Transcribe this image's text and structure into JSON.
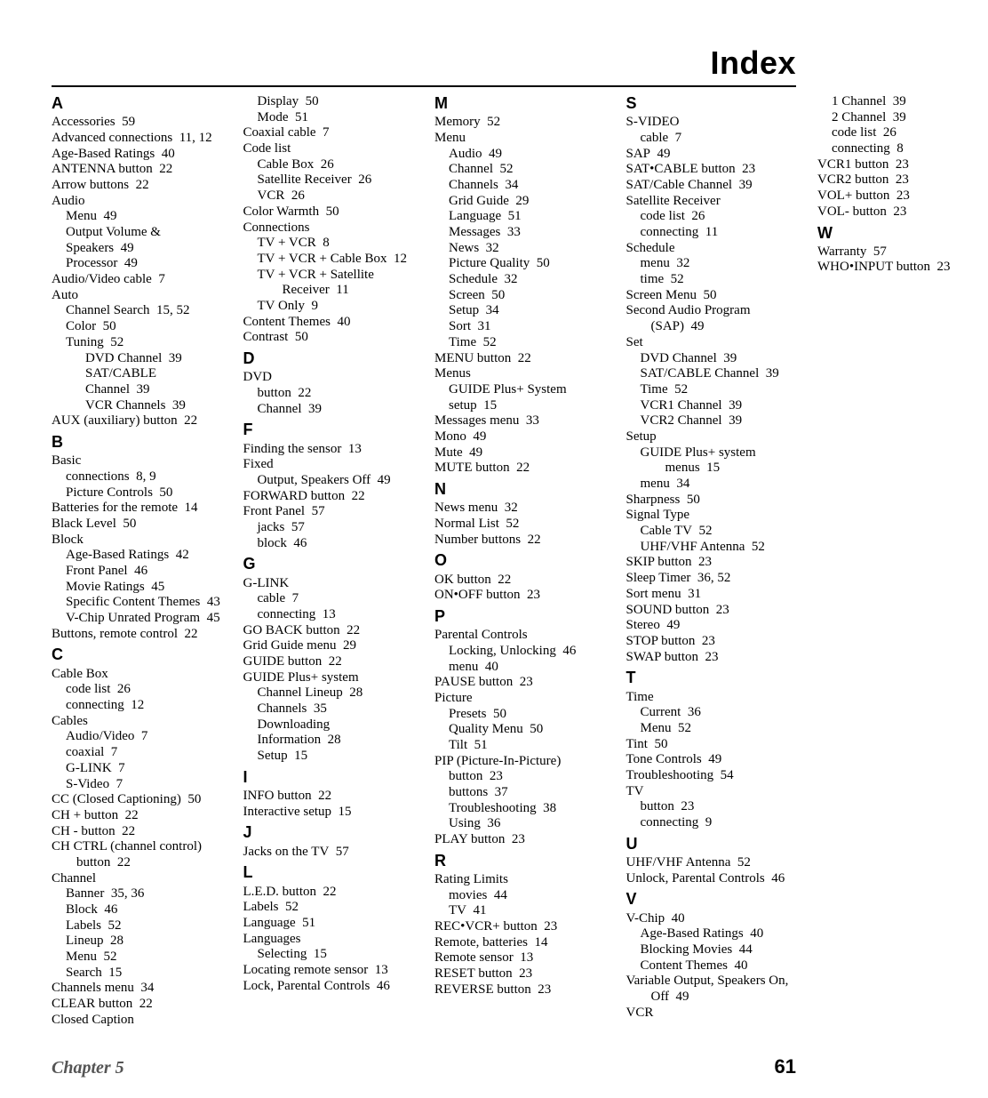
{
  "title": "Index",
  "footer": {
    "chapter": "Chapter 5",
    "page": "61"
  },
  "index": [
    {
      "letter": "A",
      "entries": [
        {
          "t": "Accessories",
          "p": "59"
        },
        {
          "t": "Advanced connections",
          "p": "11, 12"
        },
        {
          "t": "Age-Based Ratings",
          "p": "40"
        },
        {
          "t": "ANTENNA button",
          "p": "22"
        },
        {
          "t": "Arrow buttons",
          "p": "22"
        },
        {
          "t": "Audio",
          "sub": [
            {
              "t": "Menu",
              "p": "49"
            },
            {
              "t": "Output Volume & Speakers",
              "p": "49"
            },
            {
              "t": "Processor",
              "p": "49"
            }
          ]
        },
        {
          "t": "Audio/Video cable",
          "p": "7"
        },
        {
          "t": "Auto",
          "sub": [
            {
              "t": "Channel Search",
              "p": "15, 52"
            },
            {
              "t": "Color",
              "p": "50"
            },
            {
              "t": "Tuning",
              "p": "52",
              "sub": [
                {
                  "t": "DVD Channel",
                  "p": "39"
                },
                {
                  "t": "SAT/CABLE Channel",
                  "p": "39"
                },
                {
                  "t": "VCR Channels",
                  "p": "39"
                }
              ]
            }
          ]
        },
        {
          "t": "AUX (auxiliary) button",
          "p": "22"
        }
      ]
    },
    {
      "letter": "B",
      "entries": [
        {
          "t": "Basic",
          "sub": [
            {
              "t": "connections",
              "p": "8, 9"
            },
            {
              "t": "Picture Controls",
              "p": "50"
            }
          ]
        },
        {
          "t": "Batteries for the remote",
          "p": "14"
        },
        {
          "t": "Black Level",
          "p": "50"
        },
        {
          "t": "Block",
          "sub": [
            {
              "t": "Age-Based Ratings",
              "p": "42"
            },
            {
              "t": "Front Panel",
              "p": "46"
            },
            {
              "t": "Movie Ratings",
              "p": "45"
            },
            {
              "t": "Specific Content Themes",
              "p": "43"
            },
            {
              "t": "V-Chip Unrated Program",
              "p": "45"
            }
          ]
        },
        {
          "t": "Buttons, remote control",
          "p": "22"
        }
      ]
    },
    {
      "letter": "C",
      "entries": [
        {
          "t": "Cable Box",
          "sub": [
            {
              "t": "code list",
              "p": "26"
            },
            {
              "t": "connecting",
              "p": "12"
            }
          ]
        },
        {
          "t": "Cables",
          "sub": [
            {
              "t": "Audio/Video",
              "p": "7"
            },
            {
              "t": "coaxial",
              "p": "7"
            },
            {
              "t": "G-LINK",
              "p": "7"
            },
            {
              "t": "S-Video",
              "p": "7"
            }
          ]
        },
        {
          "t": "CC (Closed Captioning)",
          "p": "50"
        },
        {
          "t": "CH + button",
          "p": "22"
        },
        {
          "t": "CH - button",
          "p": "22"
        },
        {
          "t": "CH CTRL (channel control) button",
          "p": "22",
          "wrap": true
        },
        {
          "t": "Channel",
          "sub": [
            {
              "t": "Banner",
              "p": "35, 36"
            },
            {
              "t": "Block",
              "p": "46"
            },
            {
              "t": "Labels",
              "p": "52"
            },
            {
              "t": "Lineup",
              "p": "28"
            },
            {
              "t": "Menu",
              "p": "52"
            },
            {
              "t": "Search",
              "p": "15"
            }
          ]
        },
        {
          "t": "Channels menu",
          "p": "34"
        },
        {
          "t": "CLEAR button",
          "p": "22"
        },
        {
          "t": "Closed Caption",
          "sub": [
            {
              "t": "Display",
              "p": "50"
            },
            {
              "t": "Mode",
              "p": "51"
            }
          ]
        },
        {
          "t": "Coaxial cable",
          "p": "7"
        },
        {
          "t": "Code list",
          "sub": [
            {
              "t": "Cable Box",
              "p": "26"
            },
            {
              "t": "Satellite Receiver",
              "p": "26"
            },
            {
              "t": "VCR",
              "p": "26"
            }
          ]
        },
        {
          "t": "Color Warmth",
          "p": "50"
        },
        {
          "t": "Connections",
          "sub": [
            {
              "t": "TV + VCR",
              "p": "8"
            },
            {
              "t": "TV + VCR + Cable Box",
              "p": "12"
            },
            {
              "t": "TV + VCR + Satellite Receiver",
              "p": "11",
              "wrap": true
            },
            {
              "t": "TV Only",
              "p": "9"
            }
          ]
        },
        {
          "t": "Content Themes",
          "p": "40"
        },
        {
          "t": "Contrast",
          "p": "50"
        }
      ]
    },
    {
      "letter": "D",
      "entries": [
        {
          "t": "DVD",
          "sub": [
            {
              "t": "button",
              "p": "22"
            },
            {
              "t": "Channel",
              "p": "39"
            }
          ]
        }
      ]
    },
    {
      "letter": "F",
      "entries": [
        {
          "t": "Finding the sensor",
          "p": "13"
        },
        {
          "t": "Fixed",
          "sub": [
            {
              "t": "Output, Speakers Off",
              "p": "49"
            }
          ]
        },
        {
          "t": "FORWARD button",
          "p": "22"
        },
        {
          "t": "Front Panel",
          "p": "57",
          "sub": [
            {
              "t": "jacks",
              "p": "57"
            },
            {
              "t": "block",
              "p": "46"
            }
          ]
        }
      ]
    },
    {
      "letter": "G",
      "entries": [
        {
          "t": "G-LINK",
          "sub": [
            {
              "t": "cable",
              "p": "7"
            },
            {
              "t": "connecting",
              "p": "13"
            }
          ]
        },
        {
          "t": "GO BACK button",
          "p": "22"
        },
        {
          "t": "Grid Guide menu",
          "p": "29"
        },
        {
          "t": "GUIDE button",
          "p": "22"
        },
        {
          "t": "GUIDE Plus+ system",
          "sub": [
            {
              "t": "Channel Lineup",
              "p": "28"
            },
            {
              "t": "Channels",
              "p": "35"
            },
            {
              "t": "Downloading Information",
              "p": "28"
            },
            {
              "t": "Setup",
              "p": "15"
            }
          ]
        }
      ]
    },
    {
      "letter": "I",
      "entries": [
        {
          "t": "INFO button",
          "p": "22"
        },
        {
          "t": "Interactive setup",
          "p": "15"
        }
      ]
    },
    {
      "letter": "J",
      "entries": [
        {
          "t": "Jacks on the TV",
          "p": "57"
        }
      ]
    },
    {
      "letter": "L",
      "entries": [
        {
          "t": "L.E.D. button",
          "p": "22"
        },
        {
          "t": "Labels",
          "p": "52"
        },
        {
          "t": "Language",
          "p": "51"
        },
        {
          "t": "Languages",
          "sub": [
            {
              "t": "Selecting",
              "p": "15"
            }
          ]
        },
        {
          "t": "Locating remote sensor",
          "p": "13"
        },
        {
          "t": "Lock, Parental Controls",
          "p": "46"
        }
      ]
    },
    {
      "letter": "M",
      "entries": [
        {
          "t": "Memory",
          "p": "52"
        },
        {
          "t": "Menu",
          "sub": [
            {
              "t": "Audio",
              "p": "49"
            },
            {
              "t": "Channel",
              "p": "52"
            },
            {
              "t": "Channels",
              "p": "34"
            },
            {
              "t": "Grid Guide",
              "p": "29"
            },
            {
              "t": "Language",
              "p": "51"
            },
            {
              "t": "Messages",
              "p": "33"
            },
            {
              "t": "News",
              "p": "32"
            },
            {
              "t": "Picture Quality",
              "p": "50"
            },
            {
              "t": "Schedule",
              "p": "32"
            },
            {
              "t": "Screen",
              "p": "50"
            },
            {
              "t": "Setup",
              "p": "34"
            },
            {
              "t": "Sort",
              "p": "31"
            },
            {
              "t": "Time",
              "p": "52"
            }
          ]
        },
        {
          "t": "MENU button",
          "p": "22"
        },
        {
          "t": "Menus",
          "sub": [
            {
              "t": "GUIDE Plus+ System setup",
              "p": "15"
            }
          ]
        },
        {
          "t": "Messages menu",
          "p": "33"
        },
        {
          "t": "Mono",
          "p": "49"
        },
        {
          "t": "Mute",
          "p": "49"
        },
        {
          "t": "MUTE button",
          "p": "22"
        }
      ]
    },
    {
      "letter": "N",
      "entries": [
        {
          "t": "News menu",
          "p": "32"
        },
        {
          "t": "Normal List",
          "p": "52"
        },
        {
          "t": "Number buttons",
          "p": "22"
        }
      ]
    },
    {
      "letter": "O",
      "entries": [
        {
          "t": "OK button",
          "p": "22"
        },
        {
          "t": "ON•OFF button",
          "p": "23"
        }
      ]
    },
    {
      "letter": "P",
      "entries": [
        {
          "t": "Parental Controls",
          "sub": [
            {
              "t": "Locking, Unlocking",
              "p": "46"
            },
            {
              "t": "menu",
              "p": "40"
            }
          ]
        },
        {
          "t": "PAUSE button",
          "p": "23"
        },
        {
          "t": "Picture",
          "sub": [
            {
              "t": "Presets",
              "p": "50"
            },
            {
              "t": "Quality Menu",
              "p": "50"
            },
            {
              "t": "Tilt",
              "p": "51"
            }
          ]
        },
        {
          "t": "PIP (Picture-In-Picture)",
          "sub": [
            {
              "t": "button",
              "p": "23"
            },
            {
              "t": "buttons",
              "p": "37"
            },
            {
              "t": "Troubleshooting",
              "p": "38"
            },
            {
              "t": "Using",
              "p": "36"
            }
          ]
        },
        {
          "t": "PLAY button",
          "p": "23"
        }
      ]
    },
    {
      "letter": "R",
      "entries": [
        {
          "t": "Rating Limits",
          "sub": [
            {
              "t": "movies",
              "p": "44"
            },
            {
              "t": "TV",
              "p": "41"
            }
          ]
        },
        {
          "t": "REC•VCR+ button",
          "p": "23"
        },
        {
          "t": "Remote, batteries",
          "p": "14"
        },
        {
          "t": "Remote sensor",
          "p": "13"
        },
        {
          "t": "RESET button",
          "p": "23"
        },
        {
          "t": "REVERSE button",
          "p": "23"
        }
      ]
    },
    {
      "letter": "S",
      "entries": [
        {
          "t": "S-VIDEO",
          "sub": [
            {
              "t": "cable",
              "p": "7"
            }
          ]
        },
        {
          "t": "SAP",
          "p": "49"
        },
        {
          "t": "SAT•CABLE button",
          "p": "23"
        },
        {
          "t": "SAT/Cable Channel",
          "p": "39"
        },
        {
          "t": "Satellite Receiver",
          "sub": [
            {
              "t": "code list",
              "p": "26"
            },
            {
              "t": "connecting",
              "p": "11"
            }
          ]
        },
        {
          "t": "Schedule",
          "sub": [
            {
              "t": "menu",
              "p": "32"
            },
            {
              "t": "time",
              "p": "52"
            }
          ]
        },
        {
          "t": "Screen Menu",
          "p": "50"
        },
        {
          "t": "Second Audio Program (SAP)",
          "p": "49",
          "wrap": true
        },
        {
          "t": "Set",
          "sub": [
            {
              "t": "DVD Channel",
              "p": "39"
            },
            {
              "t": "SAT/CABLE Channel",
              "p": "39"
            },
            {
              "t": "Time",
              "p": "52"
            },
            {
              "t": "VCR1 Channel",
              "p": "39"
            },
            {
              "t": "VCR2 Channel",
              "p": "39"
            }
          ]
        },
        {
          "t": "Setup",
          "sub": [
            {
              "t": "GUIDE Plus+ system menus",
              "p": "15",
              "wrap": true
            },
            {
              "t": "menu",
              "p": "34"
            }
          ]
        },
        {
          "t": "Sharpness",
          "p": "50"
        },
        {
          "t": "Signal Type",
          "sub": [
            {
              "t": "Cable TV",
              "p": "52"
            },
            {
              "t": "UHF/VHF Antenna",
              "p": "52"
            }
          ]
        },
        {
          "t": "SKIP button",
          "p": "23"
        },
        {
          "t": "Sleep Timer",
          "p": "36, 52"
        },
        {
          "t": "Sort menu",
          "p": "31"
        },
        {
          "t": "SOUND button",
          "p": "23"
        },
        {
          "t": "Stereo",
          "p": "49"
        },
        {
          "t": "STOP button",
          "p": "23"
        },
        {
          "t": "SWAP button",
          "p": "23"
        }
      ]
    },
    {
      "letter": "T",
      "entries": [
        {
          "t": "Time",
          "sub": [
            {
              "t": "Current",
              "p": "36"
            },
            {
              "t": "Menu",
              "p": "52"
            }
          ]
        },
        {
          "t": "Tint",
          "p": "50"
        },
        {
          "t": "Tone Controls",
          "p": "49"
        },
        {
          "t": "Troubleshooting",
          "p": "54"
        },
        {
          "t": "TV",
          "sub": [
            {
              "t": "button",
              "p": "23"
            },
            {
              "t": "connecting",
              "p": "9"
            }
          ]
        }
      ]
    },
    {
      "letter": "U",
      "entries": [
        {
          "t": "UHF/VHF Antenna",
          "p": "52"
        },
        {
          "t": "Unlock, Parental Controls",
          "p": "46"
        }
      ]
    },
    {
      "letter": "V",
      "entries": [
        {
          "t": "V-Chip",
          "p": "40",
          "sub": [
            {
              "t": "Age-Based Ratings",
              "p": "40"
            },
            {
              "t": "Blocking Movies",
              "p": "44"
            },
            {
              "t": "Content Themes",
              "p": "40"
            }
          ]
        },
        {
          "t": "Variable Output, Speakers On, Off",
          "p": "49",
          "wrap": true
        },
        {
          "t": "VCR",
          "sub": [
            {
              "t": "1 Channel",
              "p": "39"
            },
            {
              "t": "2 Channel",
              "p": "39"
            },
            {
              "t": "code list",
              "p": "26"
            },
            {
              "t": "connecting",
              "p": "8"
            }
          ]
        },
        {
          "t": "VCR1 button",
          "p": "23"
        },
        {
          "t": "VCR2 button",
          "p": "23"
        },
        {
          "t": "VOL+ button",
          "p": "23"
        },
        {
          "t": "VOL- button",
          "p": "23"
        }
      ]
    },
    {
      "letter": "W",
      "entries": [
        {
          "t": "Warranty",
          "p": "57"
        },
        {
          "t": "WHO•INPUT button",
          "p": "23"
        }
      ]
    }
  ]
}
